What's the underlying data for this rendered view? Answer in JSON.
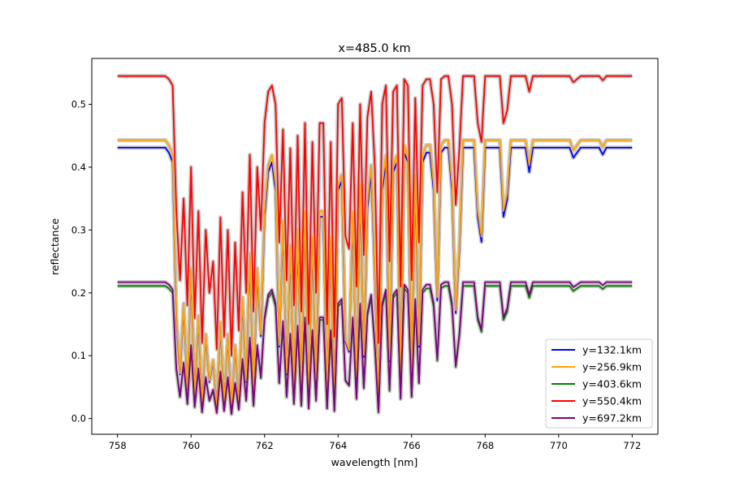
{
  "chart_data": {
    "type": "line",
    "title": "x=485.0 km",
    "xlabel": "wavelength [nm]",
    "ylabel": "reflectance",
    "xlim": [
      757.3,
      772.7
    ],
    "ylim": [
      -0.025,
      0.573
    ],
    "xticks": [
      758,
      760,
      762,
      764,
      766,
      768,
      770,
      772
    ],
    "xtick_labels": [
      "758",
      "760",
      "762",
      "764",
      "766",
      "768",
      "770",
      "772"
    ],
    "yticks": [
      0.0,
      0.1,
      0.2,
      0.3,
      0.4,
      0.5
    ],
    "ytick_labels": [
      "0.0",
      "0.1",
      "0.2",
      "0.3",
      "0.4",
      "0.5"
    ],
    "grid": false,
    "legend_position": "lower-right",
    "uncertainty_band_color": "#c8c8c8",
    "x": [
      758.0,
      758.1,
      758.2,
      758.3,
      758.4,
      758.5,
      758.6,
      758.7,
      758.8,
      758.9,
      759.0,
      759.1,
      759.2,
      759.3,
      759.4,
      759.5,
      759.6,
      759.7,
      759.8,
      759.9,
      760.0,
      760.1,
      760.2,
      760.3,
      760.4,
      760.5,
      760.6,
      760.7,
      760.8,
      760.9,
      761.0,
      761.1,
      761.2,
      761.3,
      761.4,
      761.5,
      761.6,
      761.7,
      761.8,
      761.9,
      762.0,
      762.1,
      762.2,
      762.3,
      762.4,
      762.5,
      762.6,
      762.7,
      762.8,
      762.9,
      763.0,
      763.1,
      763.2,
      763.3,
      763.4,
      763.5,
      763.6,
      763.7,
      763.8,
      763.9,
      764.0,
      764.1,
      764.2,
      764.3,
      764.4,
      764.5,
      764.6,
      764.7,
      764.8,
      764.9,
      765.0,
      765.1,
      765.2,
      765.3,
      765.4,
      765.5,
      765.6,
      765.7,
      765.8,
      765.9,
      766.0,
      766.1,
      766.2,
      766.3,
      766.4,
      766.5,
      766.6,
      766.7,
      766.8,
      766.9,
      767.0,
      767.1,
      767.2,
      767.3,
      767.4,
      767.5,
      767.6,
      767.7,
      767.8,
      767.9,
      768.0,
      768.1,
      768.2,
      768.3,
      768.4,
      768.5,
      768.6,
      768.7,
      768.8,
      768.9,
      769.0,
      769.1,
      769.2,
      769.3,
      769.4,
      769.5,
      769.6,
      769.7,
      769.8,
      769.9,
      770.0,
      770.1,
      770.2,
      770.3,
      770.4,
      770.5,
      770.6,
      770.7,
      770.8,
      770.9,
      771.0,
      771.1,
      771.2,
      771.3,
      771.4,
      771.5,
      771.6,
      771.7,
      771.8,
      771.9,
      772.0
    ],
    "series": [
      {
        "name": "y=132.1km",
        "color": "#0000ff",
        "values": [
          0.431,
          0.431,
          0.431,
          0.431,
          0.431,
          0.431,
          0.431,
          0.431,
          0.431,
          0.431,
          0.431,
          0.431,
          0.431,
          0.431,
          0.423,
          0.408,
          0.158,
          0.07,
          0.178,
          0.047,
          0.232,
          0.037,
          0.158,
          0.021,
          0.131,
          0.058,
          0.091,
          0.018,
          0.149,
          0.025,
          0.131,
          0.015,
          0.114,
          0.028,
          0.188,
          0.058,
          0.256,
          0.042,
          0.232,
          0.131,
          0.321,
          0.392,
          0.408,
          0.363,
          0.114,
          0.307,
          0.07,
          0.269,
          0.047,
          0.294,
          0.042,
          0.321,
          0.033,
          0.281,
          0.058,
          0.321,
          0.321,
          0.033,
          0.281,
          0.025,
          0.363,
          0.378,
          0.122,
          0.106,
          0.321,
          0.064,
          0.363,
          0.098,
          0.334,
          0.392,
          0.232,
          0.021,
          0.363,
          0.408,
          0.091,
          0.392,
          0.408,
          0.064,
          0.423,
          0.408,
          0.07,
          0.378,
          0.114,
          0.408,
          0.423,
          0.423,
          0.363,
          0.188,
          0.423,
          0.431,
          0.431,
          0.363,
          0.168,
          0.269,
          0.431,
          0.431,
          0.431,
          0.431,
          0.321,
          0.281,
          0.431,
          0.431,
          0.431,
          0.431,
          0.431,
          0.321,
          0.348,
          0.431,
          0.431,
          0.431,
          0.431,
          0.431,
          0.392,
          0.431,
          0.431,
          0.431,
          0.431,
          0.431,
          0.431,
          0.431,
          0.431,
          0.431,
          0.431,
          0.431,
          0.415,
          0.423,
          0.431,
          0.431,
          0.431,
          0.431,
          0.431,
          0.431,
          0.42,
          0.431,
          0.431,
          0.431,
          0.431,
          0.431,
          0.431,
          0.431,
          0.431
        ]
      },
      {
        "name": "y=256.9km",
        "color": "#ffa500",
        "values": [
          0.443,
          0.443,
          0.443,
          0.443,
          0.443,
          0.443,
          0.443,
          0.443,
          0.443,
          0.443,
          0.443,
          0.443,
          0.443,
          0.443,
          0.435,
          0.419,
          0.163,
          0.072,
          0.183,
          0.048,
          0.239,
          0.038,
          0.163,
          0.021,
          0.134,
          0.06,
          0.093,
          0.018,
          0.153,
          0.025,
          0.134,
          0.015,
          0.117,
          0.029,
          0.193,
          0.06,
          0.263,
          0.043,
          0.239,
          0.134,
          0.33,
          0.403,
          0.419,
          0.373,
          0.117,
          0.315,
          0.072,
          0.276,
          0.048,
          0.302,
          0.043,
          0.33,
          0.034,
          0.289,
          0.06,
          0.33,
          0.33,
          0.034,
          0.289,
          0.025,
          0.373,
          0.388,
          0.125,
          0.109,
          0.33,
          0.066,
          0.373,
          0.101,
          0.344,
          0.403,
          0.239,
          0.021,
          0.373,
          0.419,
          0.093,
          0.403,
          0.419,
          0.066,
          0.435,
          0.419,
          0.072,
          0.388,
          0.117,
          0.419,
          0.435,
          0.435,
          0.373,
          0.193,
          0.435,
          0.443,
          0.443,
          0.373,
          0.172,
          0.276,
          0.443,
          0.443,
          0.443,
          0.443,
          0.33,
          0.289,
          0.443,
          0.443,
          0.443,
          0.443,
          0.443,
          0.33,
          0.358,
          0.443,
          0.443,
          0.443,
          0.443,
          0.443,
          0.403,
          0.443,
          0.443,
          0.443,
          0.443,
          0.443,
          0.443,
          0.443,
          0.443,
          0.443,
          0.443,
          0.443,
          0.427,
          0.435,
          0.443,
          0.443,
          0.443,
          0.443,
          0.443,
          0.443,
          0.432,
          0.443,
          0.443,
          0.443,
          0.443,
          0.443,
          0.443,
          0.443,
          0.443
        ]
      },
      {
        "name": "y=403.6km",
        "color": "#008000",
        "values": [
          0.211,
          0.211,
          0.211,
          0.211,
          0.211,
          0.211,
          0.211,
          0.211,
          0.211,
          0.211,
          0.211,
          0.211,
          0.211,
          0.211,
          0.207,
          0.2,
          0.077,
          0.034,
          0.087,
          0.023,
          0.114,
          0.018,
          0.077,
          0.01,
          0.064,
          0.028,
          0.044,
          0.009,
          0.073,
          0.012,
          0.064,
          0.007,
          0.056,
          0.014,
          0.092,
          0.028,
          0.125,
          0.02,
          0.114,
          0.064,
          0.157,
          0.192,
          0.2,
          0.178,
          0.056,
          0.15,
          0.034,
          0.131,
          0.023,
          0.144,
          0.02,
          0.157,
          0.016,
          0.138,
          0.028,
          0.157,
          0.157,
          0.016,
          0.138,
          0.012,
          0.178,
          0.185,
          0.06,
          0.052,
          0.157,
          0.031,
          0.178,
          0.048,
          0.164,
          0.192,
          0.114,
          0.01,
          0.178,
          0.2,
          0.044,
          0.192,
          0.2,
          0.031,
          0.207,
          0.2,
          0.034,
          0.185,
          0.056,
          0.2,
          0.207,
          0.207,
          0.178,
          0.092,
          0.207,
          0.211,
          0.211,
          0.178,
          0.082,
          0.131,
          0.211,
          0.211,
          0.211,
          0.211,
          0.157,
          0.138,
          0.211,
          0.211,
          0.211,
          0.211,
          0.211,
          0.157,
          0.17,
          0.211,
          0.211,
          0.211,
          0.211,
          0.211,
          0.192,
          0.211,
          0.211,
          0.211,
          0.211,
          0.211,
          0.211,
          0.211,
          0.211,
          0.211,
          0.211,
          0.211,
          0.203,
          0.207,
          0.211,
          0.211,
          0.211,
          0.211,
          0.211,
          0.211,
          0.206,
          0.211,
          0.211,
          0.211,
          0.211,
          0.211,
          0.211,
          0.211,
          0.211
        ]
      },
      {
        "name": "y=550.4km",
        "color": "#ff0000",
        "values": [
          0.545,
          0.545,
          0.545,
          0.545,
          0.545,
          0.545,
          0.545,
          0.545,
          0.545,
          0.545,
          0.545,
          0.545,
          0.545,
          0.545,
          0.54,
          0.53,
          0.33,
          0.22,
          0.35,
          0.18,
          0.4,
          0.16,
          0.33,
          0.12,
          0.3,
          0.2,
          0.25,
          0.11,
          0.32,
          0.13,
          0.3,
          0.1,
          0.28,
          0.14,
          0.36,
          0.2,
          0.42,
          0.17,
          0.4,
          0.3,
          0.47,
          0.52,
          0.53,
          0.5,
          0.28,
          0.46,
          0.22,
          0.43,
          0.18,
          0.45,
          0.17,
          0.47,
          0.15,
          0.44,
          0.2,
          0.47,
          0.47,
          0.15,
          0.44,
          0.13,
          0.5,
          0.51,
          0.29,
          0.27,
          0.47,
          0.21,
          0.5,
          0.26,
          0.48,
          0.52,
          0.4,
          0.12,
          0.5,
          0.53,
          0.25,
          0.52,
          0.53,
          0.21,
          0.54,
          0.53,
          0.22,
          0.51,
          0.28,
          0.53,
          0.54,
          0.54,
          0.5,
          0.36,
          0.54,
          0.545,
          0.545,
          0.5,
          0.34,
          0.43,
          0.545,
          0.545,
          0.545,
          0.545,
          0.47,
          0.44,
          0.545,
          0.545,
          0.545,
          0.545,
          0.545,
          0.47,
          0.49,
          0.545,
          0.545,
          0.545,
          0.545,
          0.545,
          0.52,
          0.545,
          0.545,
          0.545,
          0.545,
          0.545,
          0.545,
          0.545,
          0.545,
          0.545,
          0.545,
          0.545,
          0.535,
          0.54,
          0.545,
          0.545,
          0.545,
          0.545,
          0.545,
          0.545,
          0.538,
          0.545,
          0.545,
          0.545,
          0.545,
          0.545,
          0.545,
          0.545,
          0.545
        ]
      },
      {
        "name": "y=697.2km",
        "color": "#800080",
        "values": [
          0.217,
          0.217,
          0.217,
          0.217,
          0.217,
          0.217,
          0.217,
          0.217,
          0.217,
          0.217,
          0.217,
          0.217,
          0.217,
          0.217,
          0.213,
          0.205,
          0.08,
          0.035,
          0.089,
          0.024,
          0.117,
          0.019,
          0.08,
          0.01,
          0.066,
          0.029,
          0.046,
          0.009,
          0.075,
          0.012,
          0.066,
          0.007,
          0.057,
          0.014,
          0.095,
          0.029,
          0.129,
          0.021,
          0.117,
          0.066,
          0.161,
          0.197,
          0.205,
          0.183,
          0.057,
          0.155,
          0.035,
          0.135,
          0.024,
          0.148,
          0.021,
          0.161,
          0.016,
          0.141,
          0.029,
          0.161,
          0.161,
          0.016,
          0.141,
          0.012,
          0.183,
          0.19,
          0.061,
          0.053,
          0.161,
          0.032,
          0.183,
          0.049,
          0.168,
          0.197,
          0.117,
          0.01,
          0.183,
          0.205,
          0.046,
          0.197,
          0.205,
          0.032,
          0.213,
          0.205,
          0.035,
          0.19,
          0.057,
          0.205,
          0.213,
          0.213,
          0.183,
          0.095,
          0.213,
          0.217,
          0.217,
          0.183,
          0.084,
          0.135,
          0.217,
          0.217,
          0.217,
          0.217,
          0.161,
          0.141,
          0.217,
          0.217,
          0.217,
          0.217,
          0.217,
          0.161,
          0.175,
          0.217,
          0.217,
          0.217,
          0.217,
          0.217,
          0.197,
          0.217,
          0.217,
          0.217,
          0.217,
          0.217,
          0.217,
          0.217,
          0.217,
          0.217,
          0.217,
          0.217,
          0.209,
          0.213,
          0.217,
          0.217,
          0.217,
          0.217,
          0.217,
          0.217,
          0.212,
          0.217,
          0.217,
          0.217,
          0.217,
          0.217,
          0.217,
          0.217,
          0.217
        ]
      }
    ]
  }
}
